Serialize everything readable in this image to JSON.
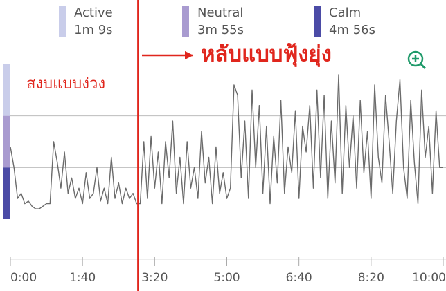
{
  "chart_data": {
    "type": "line",
    "zones": [
      {
        "name": "Active",
        "duration": "1m 9s",
        "color": "#c9cdea",
        "range": [
          2,
          3
        ]
      },
      {
        "name": "Neutral",
        "duration": "3m 55s",
        "color": "#a99bd0",
        "range": [
          1,
          2
        ]
      },
      {
        "name": "Calm",
        "duration": "4m 56s",
        "color": "#4b4ba6",
        "range": [
          0,
          1
        ]
      }
    ],
    "annotations": [
      {
        "text": "หลับแบบฟุ้งยุ่ง",
        "x": 177
      },
      {
        "text": "สงบแบบง่วง"
      }
    ],
    "xlim": [
      0,
      600
    ],
    "ylim": [
      0,
      3
    ],
    "xticks": [
      {
        "value": 0,
        "label": "0:00"
      },
      {
        "value": 100,
        "label": "1:40"
      },
      {
        "value": 200,
        "label": "3:20"
      },
      {
        "value": 300,
        "label": "5:00"
      },
      {
        "value": 400,
        "label": "6:40"
      },
      {
        "value": 500,
        "label": "8:20"
      },
      {
        "value": 600,
        "label": "10:00"
      }
    ],
    "line_color": "#6b6b6b",
    "x": [
      0,
      5,
      10,
      15,
      20,
      25,
      30,
      35,
      40,
      45,
      50,
      55,
      60,
      65,
      70,
      75,
      80,
      85,
      90,
      95,
      100,
      105,
      110,
      115,
      120,
      125,
      130,
      135,
      140,
      145,
      150,
      155,
      160,
      165,
      170,
      175,
      180,
      185,
      190,
      195,
      200,
      205,
      210,
      215,
      220,
      225,
      230,
      235,
      240,
      245,
      250,
      255,
      260,
      265,
      270,
      275,
      280,
      285,
      290,
      295,
      300,
      305,
      310,
      315,
      320,
      325,
      330,
      335,
      340,
      345,
      350,
      355,
      360,
      365,
      370,
      375,
      380,
      385,
      390,
      395,
      400,
      405,
      410,
      415,
      420,
      425,
      430,
      435,
      440,
      445,
      450,
      455,
      460,
      465,
      470,
      475,
      480,
      485,
      490,
      495,
      500,
      505,
      510,
      515,
      520,
      525,
      530,
      535,
      540,
      545,
      550,
      555,
      560,
      565,
      570,
      575,
      580,
      585,
      590,
      595,
      600
    ],
    "values": [
      1.4,
      1.0,
      0.4,
      0.5,
      0.3,
      0.35,
      0.25,
      0.2,
      0.2,
      0.25,
      0.3,
      0.3,
      1.5,
      1.1,
      0.6,
      1.3,
      0.5,
      0.8,
      0.4,
      0.6,
      0.3,
      0.9,
      0.4,
      0.5,
      1.0,
      0.35,
      0.6,
      0.3,
      1.2,
      0.4,
      0.7,
      0.3,
      0.6,
      0.4,
      0.5,
      0.3,
      0.3,
      1.5,
      0.4,
      1.6,
      0.6,
      1.3,
      0.3,
      1.5,
      0.8,
      1.9,
      0.5,
      1.2,
      0.3,
      1.5,
      0.6,
      1.0,
      0.4,
      1.7,
      0.7,
      1.2,
      0.3,
      1.4,
      0.5,
      0.9,
      0.4,
      0.6,
      2.6,
      2.4,
      0.8,
      1.9,
      0.4,
      2.5,
      1.0,
      2.2,
      0.5,
      1.8,
      0.3,
      1.6,
      0.7,
      2.3,
      0.5,
      1.4,
      0.9,
      2.1,
      0.4,
      1.8,
      1.3,
      2.2,
      0.6,
      2.5,
      0.8,
      2.4,
      0.4,
      1.9,
      0.7,
      2.8,
      0.5,
      2.2,
      1.0,
      2.0,
      0.6,
      2.3,
      0.9,
      1.7,
      0.4,
      2.6,
      1.2,
      0.7,
      2.4,
      1.5,
      0.5,
      1.9,
      2.7,
      1.0,
      0.4,
      2.3,
      1.1,
      0.3,
      2.5,
      1.2,
      1.8,
      0.5,
      2.1,
      1.0,
      1.0
    ]
  }
}
